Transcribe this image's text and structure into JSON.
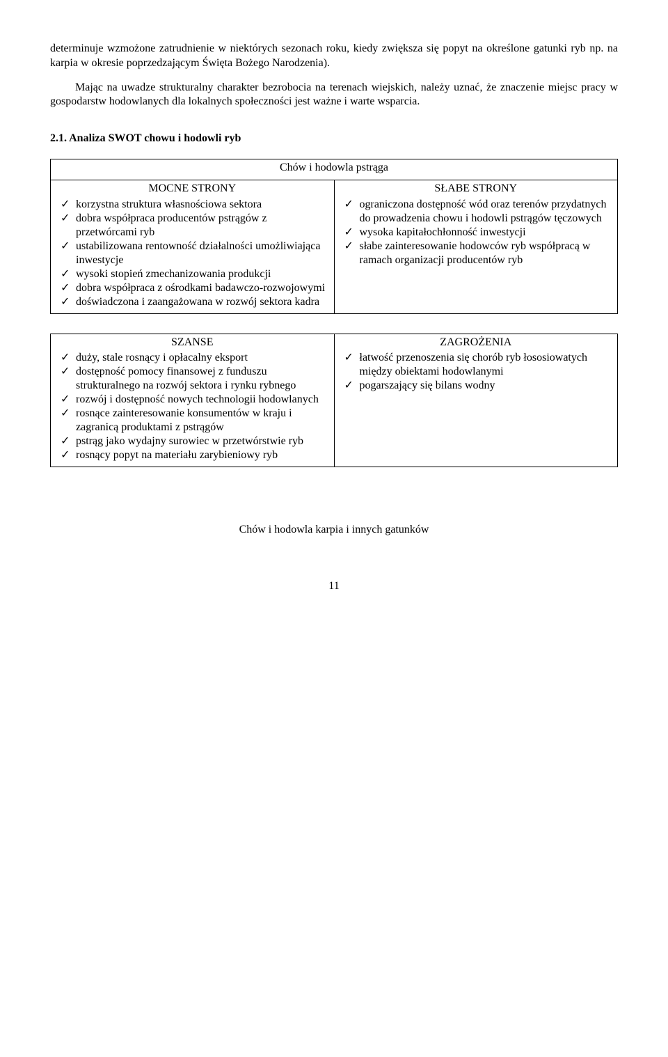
{
  "paragraphs": {
    "p1": "determinuje wzmożone zatrudnienie w niektórych sezonach roku, kiedy zwiększa się popyt na określone gatunki ryb np. na karpia w okresie poprzedzającym Święta Bożego Narodzenia).",
    "p2": "Mając na uwadze strukturalny charakter bezrobocia na terenach wiejskich, należy uznać, że znaczenie miejsc pracy w gospodarstw hodowlanych dla lokalnych społeczności jest ważne i warte wsparcia."
  },
  "section_heading": "2.1. Analiza SWOT chowu i hodowli ryb",
  "table1": {
    "caption": "Chów i hodowla pstrąga",
    "left_title": "MOCNE STRONY",
    "right_title": "SŁABE STRONY",
    "left_items": [
      "korzystna struktura własnościowa sektora",
      "dobra współpraca producentów pstrągów z przetwórcami ryb",
      "ustabilizowana rentowność działalności umożliwiająca inwestycje",
      "wysoki stopień zmechanizowania produkcji",
      "dobra współpraca z ośrodkami badawczo-rozwojowymi",
      "doświadczona i zaangażowana w rozwój sektora kadra"
    ],
    "right_items": [
      "ograniczona dostępność wód oraz terenów przydatnych do prowadzenia chowu i hodowli pstrągów tęczowych",
      "wysoka kapitałochłonność inwestycji",
      "słabe zainteresowanie hodowców ryb współpracą w ramach organizacji producentów ryb"
    ]
  },
  "table2": {
    "left_title": "SZANSE",
    "right_title": "ZAGROŻENIA",
    "left_items": [
      "duży, stale rosnący i opłacalny eksport",
      "dostępność pomocy finansowej z funduszu strukturalnego na rozwój sektora i rynku rybnego",
      "rozwój i dostępność nowych technologii hodowlanych",
      "rosnące zainteresowanie konsumentów w kraju i zagranicą produktami z pstrągów",
      "pstrąg jako wydajny surowiec w przetwórstwie ryb",
      "rosnący popyt na materiału zarybieniowy ryb"
    ],
    "right_items": [
      "łatwość przenoszenia się chorób ryb łososiowatych między obiektami hodowlanymi",
      "pogarszający się bilans wodny"
    ]
  },
  "subtitle": "Chów i hodowla karpia i innych gatunków",
  "page_number": "11",
  "tick_glyph": "✓"
}
